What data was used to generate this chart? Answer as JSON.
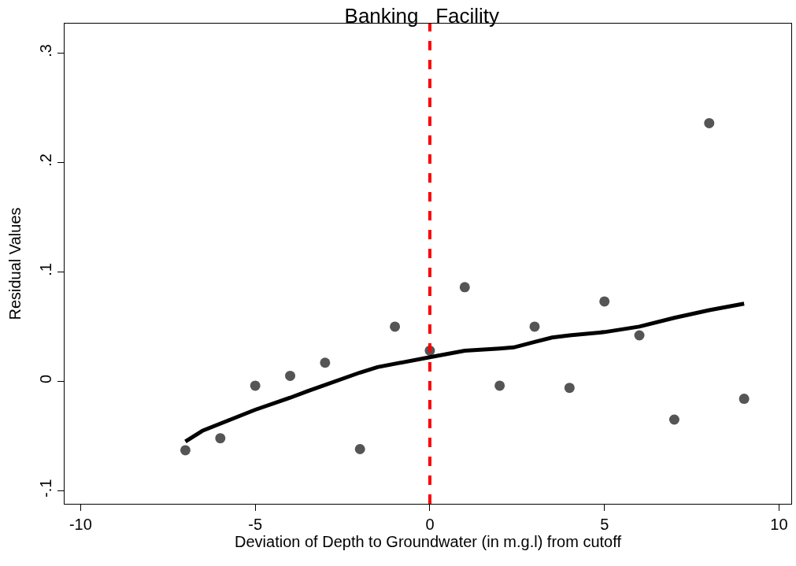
{
  "chart_data": {
    "type": "scatter",
    "title": "Banking   Facility",
    "xlabel": "Deviation of Depth to Groundwater (in m.g.l) from cutoff",
    "ylabel": "Residual Values",
    "xlim": [
      -10.46,
      10.35
    ],
    "xticks": [
      -10,
      -5,
      0,
      5,
      10
    ],
    "ylim": [
      -0.112,
      0.327
    ],
    "yticks": [
      {
        "value": -0.1,
        "label": "-.1"
      },
      0,
      {
        "value": 0.1,
        "label": ".1"
      },
      {
        "value": 0.2,
        "label": ".2"
      },
      {
        "value": 0.3,
        "label": ".3"
      }
    ],
    "series": [
      {
        "marker": "circle",
        "color": "#555555",
        "x": [
          -7,
          -6,
          -5,
          -4,
          -3,
          -2,
          -1,
          0,
          1,
          2,
          3,
          4,
          5,
          6,
          7,
          8,
          9
        ],
        "values": [
          -0.063,
          -0.052,
          -0.004,
          0.005,
          0.017,
          -0.062,
          0.05,
          0.028,
          0.086,
          -0.004,
          0.05,
          -0.006,
          0.073,
          0.042,
          -0.035,
          0.236,
          -0.016
        ]
      },
      {
        "type": "line",
        "marker": "none",
        "line_style": "solid",
        "color": "#000000",
        "x": [
          -7,
          -6.5,
          -5,
          -4,
          -3.5,
          -2,
          -1.5,
          0,
          1,
          2,
          2.4,
          3,
          3.5,
          4,
          5,
          6,
          7,
          8,
          9
        ],
        "values": [
          -0.055,
          -0.045,
          -0.026,
          -0.015,
          -0.009,
          0.008,
          0.013,
          0.022,
          0.028,
          0.03,
          0.031,
          0.036,
          0.04,
          0.042,
          0.045,
          0.05,
          0.058,
          0.065,
          0.071
        ]
      }
    ],
    "ref_lines": [
      {
        "axis": "x",
        "value": 0,
        "color": "#ff0000",
        "line_style": "dashed"
      }
    ]
  }
}
